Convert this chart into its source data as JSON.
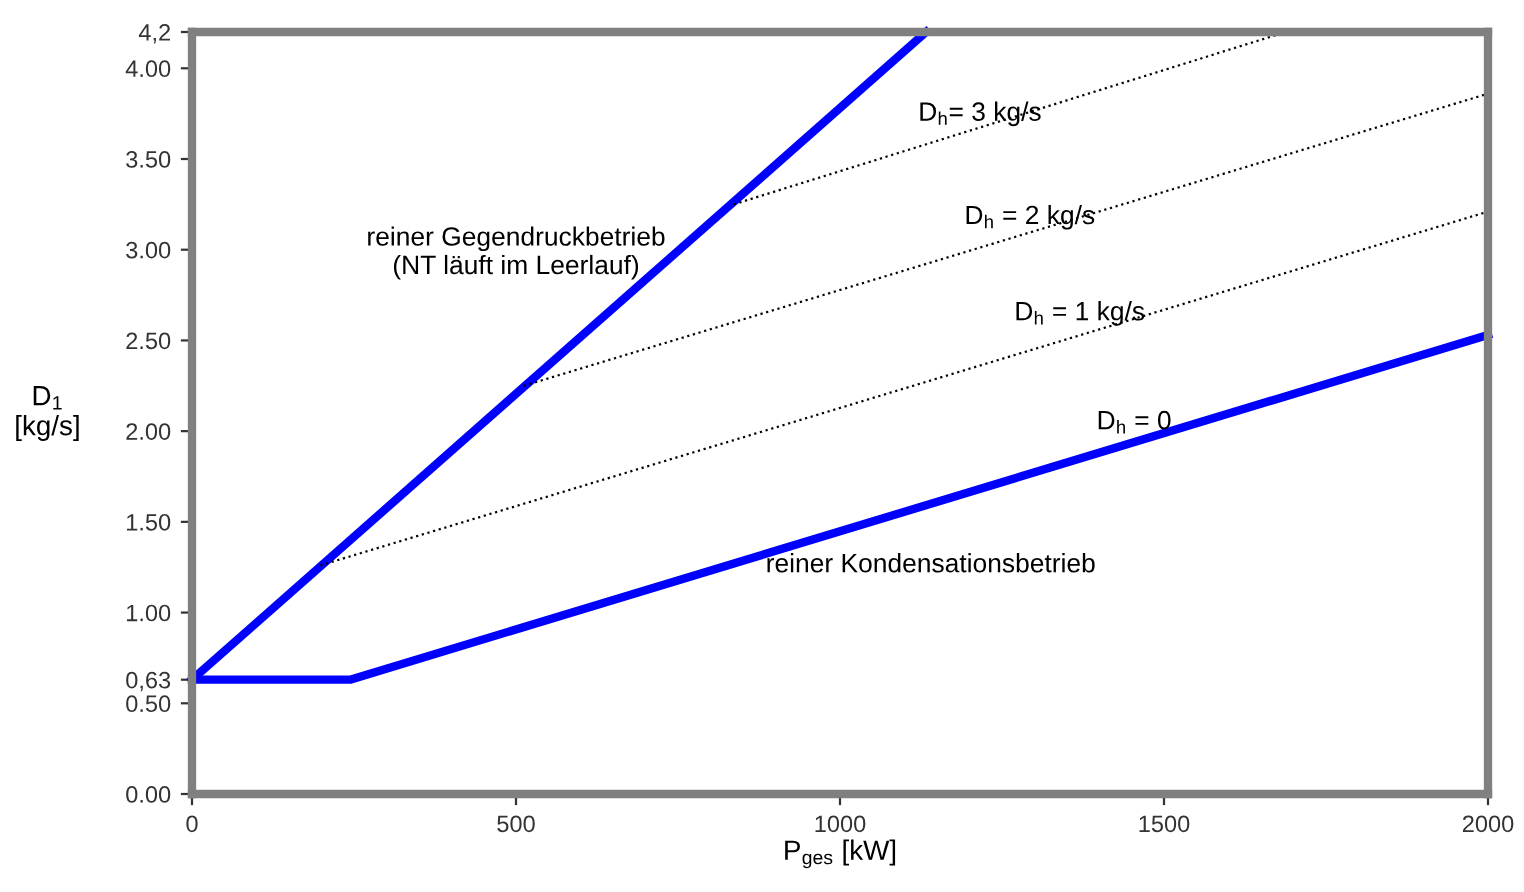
{
  "chart_data": {
    "type": "line",
    "xlabel": "P$_{ges}$ [kW]",
    "ylabel": "D$_{1}$\n[kg/s]",
    "xlim": [
      0,
      2000
    ],
    "xticks": [
      0,
      500,
      1000,
      1500,
      2000
    ],
    "ylim": [
      0,
      4.2
    ],
    "yticks": [
      {
        "value": 0,
        "label": "0.00"
      },
      {
        "value": 0.5,
        "label": "0.50"
      },
      {
        "value": 0.63,
        "label": "0,63"
      },
      {
        "value": 1,
        "label": "1.00"
      },
      {
        "value": 1.5,
        "label": "1.50"
      },
      {
        "value": 2,
        "label": "2.00"
      },
      {
        "value": 2.5,
        "label": "2.50"
      },
      {
        "value": 3,
        "label": "3.00"
      },
      {
        "value": 3.5,
        "label": "3.50"
      },
      {
        "value": 4,
        "label": "4.00"
      },
      {
        "value": 4.2,
        "label": "4,2"
      }
    ],
    "grid": false,
    "legend": false,
    "marker": "none",
    "series": [
      {
        "color": "#0000ff",
        "line_style": "solid",
        "x": [
          0,
          1133
        ],
        "values": [
          0.63,
          4.2
        ]
      },
      {
        "color": "#0000ff",
        "line_style": "solid",
        "x": [
          0,
          244,
          2000
        ],
        "values": [
          0.63,
          0.63,
          2.53
        ]
      },
      {
        "color": "#000000",
        "line_style": "dotted",
        "x": [
          198,
          2000
        ],
        "values": [
          1.26,
          3.21
        ]
      },
      {
        "color": "#000000",
        "line_style": "dotted",
        "x": [
          512,
          2000
        ],
        "values": [
          2.25,
          3.86
        ]
      },
      {
        "color": "#000000",
        "line_style": "dotted",
        "x": [
          836,
          1688
        ],
        "values": [
          3.25,
          4.2
        ]
      }
    ],
    "annotations": [
      "reiner Gegendruckbetrieb\n(NT läuft im Leerlauf)",
      "reiner Kondensationsbetrieb",
      {
        "text": "D$_{h}$= 3 kg/s",
        "x": 1216,
        "y": 3.68
      },
      {
        "text": "D$_{h}$ = 2 kg/s",
        "x": 1293,
        "y": 3.11
      },
      {
        "text": "D$_{h}$ = 1 kg/s",
        "x": 1370,
        "y": 2.58
      },
      {
        "text": "D$_{h}$ = 0",
        "x": 1454,
        "y": 1.98
      }
    ]
  }
}
